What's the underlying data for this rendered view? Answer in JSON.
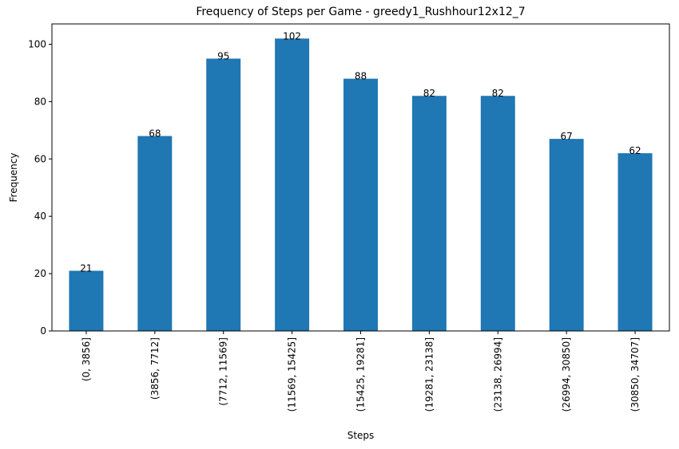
{
  "chart_data": {
    "type": "bar",
    "title": "Frequency of Steps per Game - greedy1_Rushhour12x12_7",
    "xlabel": "Steps",
    "ylabel": "Frequency",
    "categories": [
      "(0, 3856]",
      "(3856, 7712]",
      "(7712, 11569]",
      "(11569, 15425]",
      "(15425, 19281]",
      "(19281, 23138]",
      "(23138, 26994]",
      "(26994, 30850]",
      "(30850, 34707]"
    ],
    "values": [
      21,
      68,
      95,
      102,
      88,
      82,
      82,
      67,
      62
    ],
    "ylim": [
      0,
      107.1
    ],
    "yticks": [
      0,
      20,
      40,
      60,
      80,
      100
    ],
    "bar_color": "#1f77b4",
    "grid": false,
    "legend": "none"
  }
}
